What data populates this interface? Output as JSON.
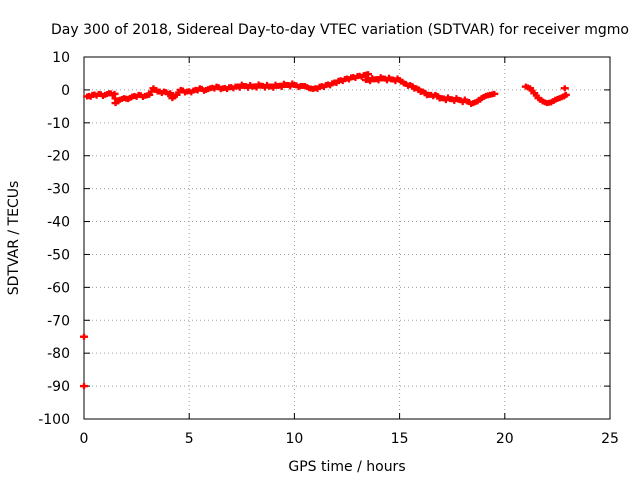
{
  "chart_data": {
    "type": "scatter",
    "title": "Day 300 of 2018, Sidereal Day-to-day VTEC variation (SDTVAR) for receiver mgmo",
    "xlabel": "GPS time / hours",
    "ylabel": "SDTVAR / TECUs",
    "xlim": [
      0,
      25
    ],
    "ylim": [
      -100,
      10
    ],
    "xticks": [
      0,
      5,
      10,
      15,
      20,
      25
    ],
    "yticks": [
      10,
      0,
      -10,
      -20,
      -30,
      -40,
      -50,
      -60,
      -70,
      -80,
      -90,
      -100
    ],
    "grid": true,
    "legend": "none",
    "series": [
      {
        "name": "SDTVAR",
        "color": "#ff0000",
        "marker": "plus",
        "points": [
          [
            0.0,
            -75.0
          ],
          [
            0.0,
            -90.0
          ],
          [
            0.15,
            -2.0
          ],
          [
            0.4,
            -1.5
          ],
          [
            0.7,
            -1.2
          ],
          [
            1.0,
            -1.5
          ],
          [
            1.2,
            -1.0
          ],
          [
            1.45,
            -1.2
          ],
          [
            1.5,
            -4.0
          ],
          [
            1.7,
            -3.0
          ],
          [
            1.9,
            -2.5
          ],
          [
            2.1,
            -2.8
          ],
          [
            2.3,
            -2.0
          ],
          [
            2.6,
            -1.5
          ],
          [
            2.9,
            -1.8
          ],
          [
            3.1,
            -1.5
          ],
          [
            3.3,
            0.5
          ],
          [
            3.5,
            -0.5
          ],
          [
            3.8,
            -0.5
          ],
          [
            4.1,
            -1.0
          ],
          [
            4.2,
            -2.5
          ],
          [
            4.4,
            -1.5
          ],
          [
            4.6,
            0.0
          ],
          [
            4.9,
            -0.5
          ],
          [
            5.2,
            -0.2
          ],
          [
            5.5,
            0.5
          ],
          [
            5.8,
            0.0
          ],
          [
            6.0,
            0.5
          ],
          [
            6.3,
            1.0
          ],
          [
            6.6,
            0.5
          ],
          [
            6.9,
            0.8
          ],
          [
            7.2,
            1.0
          ],
          [
            7.6,
            1.2
          ],
          [
            8.0,
            1.0
          ],
          [
            8.4,
            1.3
          ],
          [
            8.8,
            1.0
          ],
          [
            9.2,
            1.2
          ],
          [
            9.6,
            1.5
          ],
          [
            10.0,
            1.5
          ],
          [
            10.3,
            1.2
          ],
          [
            10.5,
            1.2
          ],
          [
            10.7,
            0.5
          ],
          [
            10.9,
            0.3
          ],
          [
            11.2,
            1.0
          ],
          [
            11.5,
            1.5
          ],
          [
            11.8,
            2.0
          ],
          [
            12.1,
            2.8
          ],
          [
            12.4,
            3.3
          ],
          [
            12.7,
            3.8
          ],
          [
            13.0,
            4.2
          ],
          [
            13.3,
            4.5
          ],
          [
            13.5,
            4.8
          ],
          [
            13.4,
            3.0
          ],
          [
            13.8,
            3.2
          ],
          [
            14.2,
            3.5
          ],
          [
            14.6,
            3.2
          ],
          [
            15.0,
            3.0
          ],
          [
            15.2,
            2.0
          ],
          [
            15.5,
            1.5
          ],
          [
            15.8,
            0.5
          ],
          [
            16.1,
            -0.5
          ],
          [
            16.4,
            -1.5
          ],
          [
            16.7,
            -1.5
          ],
          [
            17.0,
            -2.5
          ],
          [
            17.4,
            -2.8
          ],
          [
            17.8,
            -3.0
          ],
          [
            18.2,
            -3.5
          ],
          [
            18.5,
            -4.0
          ],
          [
            18.7,
            -3.5
          ],
          [
            18.9,
            -2.5
          ],
          [
            19.1,
            -1.8
          ],
          [
            19.3,
            -1.5
          ],
          [
            19.5,
            -1.2
          ],
          [
            21.0,
            1.0
          ],
          [
            21.2,
            0.5
          ],
          [
            21.4,
            -1.0
          ],
          [
            21.6,
            -2.5
          ],
          [
            21.8,
            -3.5
          ],
          [
            22.0,
            -4.0
          ],
          [
            22.2,
            -3.8
          ],
          [
            22.4,
            -3.0
          ],
          [
            22.6,
            -2.5
          ],
          [
            22.8,
            -2.0
          ],
          [
            22.9,
            -1.5
          ],
          [
            22.85,
            0.5
          ]
        ]
      }
    ]
  }
}
